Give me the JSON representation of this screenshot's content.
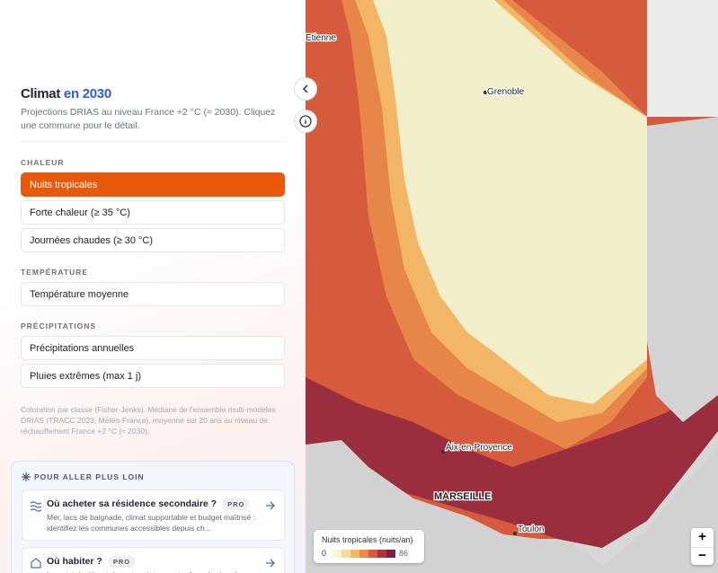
{
  "header": {
    "title": "Climat",
    "title_accent": "en 2030",
    "subtitle": "Projections DRIAS au niveau France +2 °C (≈ 2030). Cliquez une commune pour le détail."
  },
  "sections": [
    {
      "label": "CHALEUR",
      "items": [
        "Nuits tropicales",
        "Forte chaleur (≥ 35 °C)",
        "Journées chaudes (≥ 30 °C)"
      ],
      "active": 0
    },
    {
      "label": "TEMPÉRATURE",
      "items": [
        "Température moyenne"
      ]
    },
    {
      "label": "PRÉCIPITATIONS",
      "items": [
        "Précipitations annuelles",
        "Pluies extrêmes (max 1 j)"
      ]
    }
  ],
  "note": "Coloration par classe (Fisher-Jenks). Médiane de l'ensemble multi-modèles DRIAS (TRACC 2023, Météo-France), moyenne sur 20 ans au niveau de réchauffement France +2 °C (≈ 2030).",
  "more": {
    "title": "POUR ALLER PLUS LOIN",
    "cards": [
      {
        "title": "Où acheter sa résidence secondaire ?",
        "badge": "PRO",
        "text": "Mer, lacs de baignade, climat supportable et budget maîtrisé : identifiez les communes accessibles depuis ch..."
      },
      {
        "title": "Où habiter ?",
        "badge": "PRO",
        "text": "Le point de départ de tout projet : avant même de chercher..."
      }
    ]
  },
  "map": {
    "cities": [
      "Etienne",
      "Grenoble",
      "Aix-en-Provence",
      "MARSEILLE",
      "Toulon"
    ],
    "legend": {
      "title": "Nuits tropicales (nuits/an)",
      "min": 0,
      "max": 86,
      "colors": [
        "#fdf5d2",
        "#f9dc93",
        "#f3b866",
        "#ea8a48",
        "#d9573a",
        "#b1333a",
        "#7d213c"
      ]
    },
    "zoom": [
      "+",
      "−"
    ]
  }
}
